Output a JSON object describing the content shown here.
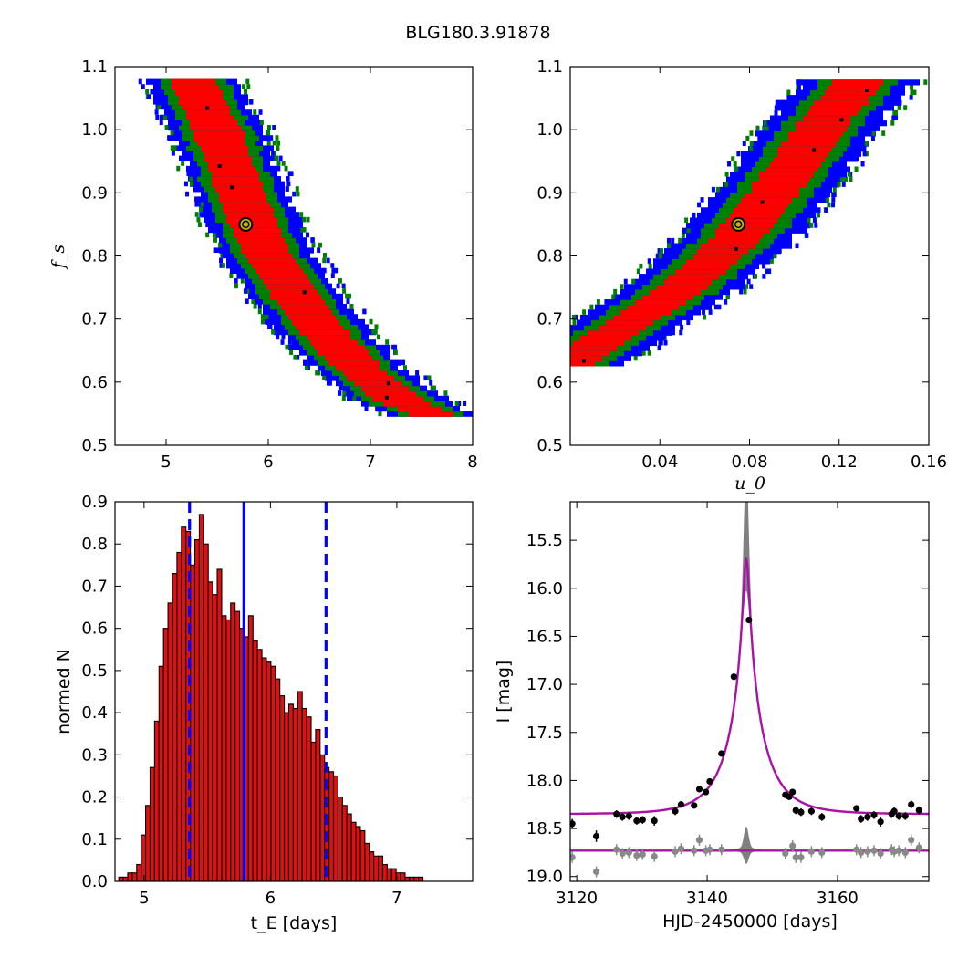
{
  "figure": {
    "title": "BLG180.3.91878"
  },
  "colors": {
    "sigma1": "#ff0000",
    "sigma2": "#008000",
    "sigma3": "#0000ff",
    "best_fit_marker_fill": "#c8b400",
    "hist_fill": "#dd1111",
    "vline": "#0000ff",
    "model_curve": "#aa11aa",
    "residual_band": "#808080",
    "data_points": "#000000",
    "residual_points": "#888888"
  },
  "chart_data": [
    {
      "type": "heatmap",
      "panel": "tE-fs",
      "xlabel": "",
      "ylabel": "f_s",
      "xlim": [
        4.5,
        8.0
      ],
      "ylim": [
        0.5,
        1.1
      ],
      "xticks": [
        "5",
        "6",
        "7",
        "8"
      ],
      "yticks": [
        "0.5",
        "0.6",
        "0.7",
        "0.8",
        "0.9",
        "1.0",
        "1.1"
      ],
      "best_fit": {
        "x": 5.78,
        "y": 0.85
      },
      "band_centerline": [
        [
          5.25,
          1.08
        ],
        [
          5.5,
          1.0
        ],
        [
          5.78,
          0.88
        ],
        [
          6.0,
          0.8
        ],
        [
          6.3,
          0.73
        ],
        [
          6.6,
          0.67
        ],
        [
          6.9,
          0.62
        ],
        [
          7.3,
          0.57
        ],
        [
          7.6,
          0.55
        ]
      ],
      "contours": [
        "1 sigma",
        "2 sigma",
        "3 sigma"
      ]
    },
    {
      "type": "heatmap",
      "panel": "u0-fs",
      "xlabel": "u_0",
      "ylabel": "",
      "xlim": [
        0.0,
        0.16
      ],
      "ylim": [
        0.5,
        1.1
      ],
      "xticks": [
        "0.04",
        "0.08",
        "0.12",
        "0.16"
      ],
      "yticks": [
        "0.5",
        "0.6",
        "0.7",
        "0.8",
        "0.9",
        "1.0",
        "1.1"
      ],
      "best_fit": {
        "x": 0.075,
        "y": 0.85
      },
      "band_centerline": [
        [
          0.0,
          0.63
        ],
        [
          0.02,
          0.68
        ],
        [
          0.05,
          0.75
        ],
        [
          0.075,
          0.83
        ],
        [
          0.095,
          0.92
        ],
        [
          0.115,
          1.02
        ],
        [
          0.13,
          1.08
        ]
      ],
      "contours": [
        "1 sigma",
        "2 sigma",
        "3 sigma"
      ]
    },
    {
      "type": "bar",
      "panel": "tE-histogram",
      "xlabel": "t_E  [days]",
      "ylabel": "normed N",
      "xlim": [
        4.77,
        7.6
      ],
      "ylim": [
        0.0,
        0.9
      ],
      "xticks": [
        "5",
        "6",
        "7"
      ],
      "yticks": [
        "0.0",
        "0.1",
        "0.2",
        "0.3",
        "0.4",
        "0.5",
        "0.6",
        "0.7",
        "0.8",
        "0.9"
      ],
      "bin_start": 4.8,
      "bin_width": 0.0354,
      "values": [
        0.01,
        0.01,
        0.02,
        0.02,
        0.04,
        0.11,
        0.18,
        0.27,
        0.38,
        0.51,
        0.6,
        0.66,
        0.73,
        0.78,
        0.84,
        0.83,
        0.75,
        0.81,
        0.87,
        0.8,
        0.71,
        0.68,
        0.74,
        0.63,
        0.62,
        0.66,
        0.64,
        0.6,
        0.58,
        0.63,
        0.57,
        0.55,
        0.53,
        0.52,
        0.51,
        0.48,
        0.44,
        0.4,
        0.42,
        0.41,
        0.45,
        0.41,
        0.39,
        0.33,
        0.36,
        0.3,
        0.27,
        0.26,
        0.25,
        0.2,
        0.18,
        0.16,
        0.14,
        0.13,
        0.12,
        0.09,
        0.07,
        0.06,
        0.06,
        0.04,
        0.03,
        0.03,
        0.02,
        0.02,
        0.01,
        0.01,
        0.01,
        0.01,
        0.0,
        0.0
      ],
      "vlines": [
        {
          "x": 5.36,
          "style": "dashed"
        },
        {
          "x": 5.79,
          "style": "solid"
        },
        {
          "x": 6.44,
          "style": "dashed"
        }
      ]
    },
    {
      "type": "scatter",
      "panel": "light-curve",
      "xlabel": "HJD-2450000 [days]",
      "ylabel": "I [mag]",
      "xlim": [
        3119,
        3174
      ],
      "ylim": [
        19.05,
        15.1
      ],
      "xticks": [
        "3120",
        "3140",
        "3160"
      ],
      "yticks": [
        "15.5",
        "16.0",
        "16.5",
        "17.0",
        "17.5",
        "18.0",
        "18.5",
        "19.0"
      ],
      "model": {
        "t0": 3146.0,
        "tE": 5.8,
        "u0": 0.075,
        "fs": 0.85,
        "baseline": 18.35
      },
      "residual_baseline": 18.73,
      "data": [
        {
          "x": 3119.3,
          "y": 18.45,
          "err": 0.05
        },
        {
          "x": 3123.0,
          "y": 18.58,
          "err": 0.06
        },
        {
          "x": 3126.1,
          "y": 18.35,
          "err": 0.04
        },
        {
          "x": 3127.0,
          "y": 18.38,
          "err": 0.04
        },
        {
          "x": 3128.0,
          "y": 18.37,
          "err": 0.04
        },
        {
          "x": 3129.2,
          "y": 18.42,
          "err": 0.04
        },
        {
          "x": 3130.1,
          "y": 18.41,
          "err": 0.04
        },
        {
          "x": 3131.9,
          "y": 18.42,
          "err": 0.05
        },
        {
          "x": 3135.1,
          "y": 18.32,
          "err": 0.04
        },
        {
          "x": 3136.0,
          "y": 18.25,
          "err": 0.03
        },
        {
          "x": 3138.0,
          "y": 18.26,
          "err": 0.03
        },
        {
          "x": 3138.8,
          "y": 18.09,
          "err": 0.03
        },
        {
          "x": 3139.8,
          "y": 18.12,
          "err": 0.03
        },
        {
          "x": 3140.4,
          "y": 18.01,
          "err": 0.03
        },
        {
          "x": 3142.2,
          "y": 17.72,
          "err": 0.02
        },
        {
          "x": 3144.1,
          "y": 16.92,
          "err": 0.02
        },
        {
          "x": 3146.4,
          "y": 16.33,
          "err": 0.02
        },
        {
          "x": 3152.0,
          "y": 18.15,
          "err": 0.03
        },
        {
          "x": 3152.6,
          "y": 18.17,
          "err": 0.03
        },
        {
          "x": 3153.1,
          "y": 18.12,
          "err": 0.03
        },
        {
          "x": 3153.6,
          "y": 18.31,
          "err": 0.04
        },
        {
          "x": 3154.4,
          "y": 18.33,
          "err": 0.04
        },
        {
          "x": 3156.0,
          "y": 18.32,
          "err": 0.04
        },
        {
          "x": 3157.6,
          "y": 18.38,
          "err": 0.04
        },
        {
          "x": 3162.9,
          "y": 18.29,
          "err": 0.03
        },
        {
          "x": 3163.6,
          "y": 18.4,
          "err": 0.04
        },
        {
          "x": 3164.6,
          "y": 18.38,
          "err": 0.04
        },
        {
          "x": 3165.6,
          "y": 18.36,
          "err": 0.04
        },
        {
          "x": 3166.6,
          "y": 18.43,
          "err": 0.05
        },
        {
          "x": 3168.3,
          "y": 18.35,
          "err": 0.04
        },
        {
          "x": 3168.7,
          "y": 18.32,
          "err": 0.04
        },
        {
          "x": 3169.4,
          "y": 18.37,
          "err": 0.04
        },
        {
          "x": 3170.4,
          "y": 18.37,
          "err": 0.04
        },
        {
          "x": 3171.3,
          "y": 18.25,
          "err": 0.04
        },
        {
          "x": 3172.5,
          "y": 18.31,
          "err": 0.04
        }
      ],
      "residuals": [
        {
          "x": 3119.3,
          "y": 18.8
        },
        {
          "x": 3123.0,
          "y": 18.95
        },
        {
          "x": 3126.1,
          "y": 18.72
        },
        {
          "x": 3127.0,
          "y": 18.76
        },
        {
          "x": 3128.0,
          "y": 18.75
        },
        {
          "x": 3129.2,
          "y": 18.78
        },
        {
          "x": 3130.1,
          "y": 18.77
        },
        {
          "x": 3131.9,
          "y": 18.79
        },
        {
          "x": 3135.1,
          "y": 18.74
        },
        {
          "x": 3136.0,
          "y": 18.71
        },
        {
          "x": 3138.0,
          "y": 18.73
        },
        {
          "x": 3138.8,
          "y": 18.62
        },
        {
          "x": 3139.8,
          "y": 18.73
        },
        {
          "x": 3140.4,
          "y": 18.72
        },
        {
          "x": 3142.2,
          "y": 18.72
        },
        {
          "x": 3152.0,
          "y": 18.76
        },
        {
          "x": 3153.1,
          "y": 18.68
        },
        {
          "x": 3153.6,
          "y": 18.8
        },
        {
          "x": 3154.4,
          "y": 18.8
        },
        {
          "x": 3156.0,
          "y": 18.74
        },
        {
          "x": 3157.6,
          "y": 18.75
        },
        {
          "x": 3162.9,
          "y": 18.72
        },
        {
          "x": 3163.6,
          "y": 18.75
        },
        {
          "x": 3164.6,
          "y": 18.74
        },
        {
          "x": 3165.6,
          "y": 18.73
        },
        {
          "x": 3166.6,
          "y": 18.76
        },
        {
          "x": 3168.3,
          "y": 18.72
        },
        {
          "x": 3168.7,
          "y": 18.74
        },
        {
          "x": 3169.4,
          "y": 18.73
        },
        {
          "x": 3170.4,
          "y": 18.75
        },
        {
          "x": 3171.3,
          "y": 18.62
        },
        {
          "x": 3172.5,
          "y": 18.7
        }
      ]
    }
  ]
}
